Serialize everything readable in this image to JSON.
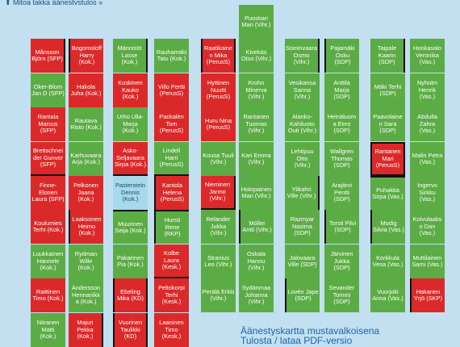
{
  "topbar_text": "⬆ Mitoa takka äänestystulos »",
  "legend": {
    "line1": "Äänestyskartta mustavalkoisena",
    "line2": "Tulosta / lataa PDF-versio"
  },
  "colors": {
    "green": "#5cac45",
    "red": "#db2929",
    "blue": "#a6d9ea"
  },
  "seats": [
    {
      "text": "Puoskari\nMari (Vihr.)",
      "c": "g",
      "col": 5,
      "row": 0
    },
    {
      "text": "Månsson\nBjörn (SFP)",
      "c": "r",
      "col": 0,
      "row": 1
    },
    {
      "text": "Bogomoloff\nHarry\n(Kok.)",
      "c": "r",
      "col": 1,
      "row": 1
    },
    {
      "text": "Männistö\nLasse\n(Kok.)",
      "c": "g",
      "col": 2,
      "row": 1
    },
    {
      "text": "Rauhamäki\nTatu (Kok.)",
      "c": "g",
      "col": 3,
      "row": 1
    },
    {
      "text": "Raatikaine\nn Mika\n(PerusS)",
      "c": "r",
      "col": 4,
      "row": 1
    },
    {
      "text": "Kivekäs\nOtso (Vihr.)",
      "c": "g",
      "col": 5,
      "row": 1
    },
    {
      "text": "Soininvaara\nOsmo\n(Vihr.)",
      "c": "g",
      "col": 6,
      "row": 1
    },
    {
      "text": "Pajamäki\nOsku (SDP)",
      "c": "g",
      "col": 7,
      "row": 1
    },
    {
      "text": "Taipale\nKaarin\n(SDP)",
      "c": "g",
      "col": 8,
      "row": 1
    },
    {
      "text": "Honkasalo\nVeronika\n(Vas.)",
      "c": "g",
      "col": 9,
      "row": 1
    },
    {
      "text": "Oker-Blom\nJan D (SFP)",
      "c": "g",
      "col": 0,
      "row": 2
    },
    {
      "text": "Hakola\nJuha (Kok.)",
      "c": "r",
      "col": 1,
      "row": 2
    },
    {
      "text": "Koskinen\nKauko\n(Kok.)",
      "c": "r",
      "col": 2,
      "row": 2
    },
    {
      "text": "Villo Pertti\n(PerusS)",
      "c": "r",
      "col": 3,
      "row": 2
    },
    {
      "text": "Hyttinen\nNuutti\n(PerusS)",
      "c": "r",
      "col": 4,
      "row": 2
    },
    {
      "text": "Krohn\nMinerva\n(Vihr.)",
      "c": "g",
      "col": 5,
      "row": 2
    },
    {
      "text": "Vesikansa\nSanna\n(Vihr.)",
      "c": "g",
      "col": 6,
      "row": 2
    },
    {
      "text": "Anttila\nMarja\n(SDP)",
      "c": "g",
      "col": 7,
      "row": 2
    },
    {
      "text": "Mäki Terhi\n(SDP)",
      "c": "g",
      "col": 8,
      "row": 2
    },
    {
      "text": "Nyholm\nHenrik\n(Vas.)",
      "c": "g",
      "col": 9,
      "row": 2
    },
    {
      "text": "Rantala\nMarcus\n(SFP)",
      "c": "r",
      "col": 0,
      "row": 3
    },
    {
      "text": "Rautava\nRisto (Kok.)",
      "c": "g",
      "col": 1,
      "row": 3
    },
    {
      "text": "Urho Ulla-\nMarja\n(Kok.)",
      "c": "g",
      "col": 2,
      "row": 3
    },
    {
      "text": "Packalén\nTom\n(PerusS)",
      "c": "r",
      "col": 3,
      "row": 3
    },
    {
      "text": "Huru Nina\n(PerusS)",
      "c": "r",
      "col": 4,
      "row": 3
    },
    {
      "text": "Rantanen\nTuomas\n(Vihr.)",
      "c": "g",
      "col": 5,
      "row": 3
    },
    {
      "text": "Alanko-\nKahiluoto\nOuti (Vihr.)",
      "c": "g",
      "col": 6,
      "row": 3
    },
    {
      "text": "Heinäluom\na Eero\n(SDP)",
      "c": "g",
      "col": 7,
      "row": 3
    },
    {
      "text": "Paavolaine\nn Sara\n(SDP)",
      "c": "g",
      "col": 8,
      "row": 3
    },
    {
      "text": "Abdulla\nZahra\n(Vas.)",
      "c": "g",
      "col": 9,
      "row": 3
    },
    {
      "text": "Brettschnei\nder Gunvor\n(SFP)",
      "c": "r",
      "col": 0,
      "row": 4
    },
    {
      "text": "Karhuvaara\nArja (Kok.)",
      "c": "g",
      "col": 1,
      "row": 4
    },
    {
      "text": "Asko-\nSeljavaara\nSirpa (Kok.)",
      "c": "r",
      "col": 2,
      "row": 4
    },
    {
      "text": "Lindell\nHarri\n(PerusS)",
      "c": "g",
      "col": 3,
      "row": 4
    },
    {
      "text": "Kousa Tuuli\n(Vihr.)",
      "c": "g",
      "col": 4,
      "row": 4
    },
    {
      "text": "Kari Emma\n(Vihr.)",
      "c": "g",
      "col": 5,
      "row": 4
    },
    {
      "text": "Lehtipuu\nOtto\n(Vihr.)",
      "c": "g",
      "col": 6,
      "row": 4
    },
    {
      "text": "Wallgren\nThomas\n(SDP)",
      "c": "g",
      "col": 7,
      "row": 4
    },
    {
      "text": "Rantanen\nMari\n(PerusS)",
      "c": "r",
      "col": 8,
      "row": 4
    },
    {
      "text": "Malin Petra\n(Vas.)",
      "c": "g",
      "col": 9,
      "row": 4
    },
    {
      "text": "Finne-\nElonen\nLaura (SFP)",
      "c": "r",
      "col": 0,
      "row": 5
    },
    {
      "text": "Pelkonen\nJaana\n(Kok.)",
      "c": "r",
      "col": 1,
      "row": 5
    },
    {
      "text": "Pasterstein\nDennis\n(Kok.)",
      "c": "b",
      "col": 2,
      "row": 5
    },
    {
      "text": "Kantola\nHelena\n(PerusS)",
      "c": "r",
      "col": 3,
      "row": 5
    },
    {
      "text": "Nieminen\nJarmo\n(Vihr.)",
      "c": "r",
      "col": 4,
      "row": 5
    },
    {
      "text": "Holopainen\nMari (Vihr.)",
      "c": "g",
      "col": 5,
      "row": 5
    },
    {
      "text": "Ylikahri\nVille (Vihr.)",
      "c": "g",
      "col": 6,
      "row": 5
    },
    {
      "text": "Arajärvi\nPentti\n(SDP)",
      "c": "g",
      "col": 7,
      "row": 5
    },
    {
      "text": "Puhakka\nSirpa (Vas.)",
      "c": "g",
      "col": 8,
      "row": 5
    },
    {
      "text": "Ingervo\nSirkku\n(Vas.)",
      "c": "g",
      "col": 9,
      "row": 5
    },
    {
      "text": "Koulumies\nTerhi (Kok.)",
      "c": "r",
      "col": 0,
      "row": 6
    },
    {
      "text": "Laaksonen\nHeimo\n(Kok.)",
      "c": "r",
      "col": 1,
      "row": 6
    },
    {
      "text": "Muurinen\nSeija (Kok.)",
      "c": "g",
      "col": 2,
      "row": 6
    },
    {
      "text": "Hursti Rene\n(RKP)",
      "c": "g",
      "col": 3,
      "row": 6
    },
    {
      "text": "Relander\nJukka\n(Vihr.)",
      "c": "g",
      "col": 4,
      "row": 6
    },
    {
      "text": "Möller\nAntti (Vihr.)",
      "c": "g",
      "col": 5,
      "row": 6
    },
    {
      "text": "Razmyar\nNasima\n(SDP)",
      "c": "g",
      "col": 6,
      "row": 6
    },
    {
      "text": "Torsti Pilvi\n(SDP)",
      "c": "g",
      "col": 7,
      "row": 6
    },
    {
      "text": "Modig\nSilvia (Vas.)",
      "c": "g",
      "col": 8,
      "row": 6
    },
    {
      "text": "Koivulaaks\no Dan\n(Vas.)",
      "c": "g",
      "col": 9,
      "row": 6
    },
    {
      "text": "Luukkainen\nHannele\n(Kok.)",
      "c": "g",
      "col": 0,
      "row": 7
    },
    {
      "text": "Rydman\nWille\n(Kok.)",
      "c": "g",
      "col": 1,
      "row": 7
    },
    {
      "text": "Pakarinen\nPia (Kok.)",
      "c": "g",
      "col": 2,
      "row": 7
    },
    {
      "text": "Kolbe\nLaura\n(Kesk.)",
      "c": "r",
      "col": 3,
      "row": 7
    },
    {
      "text": "Stranius\nLeo (Vihr.)",
      "c": "g",
      "col": 4,
      "row": 7
    },
    {
      "text": "Oskala\nHannu\n(Vihr.)",
      "c": "g",
      "col": 5,
      "row": 7
    },
    {
      "text": "Jalovaara\nVille (SDP)",
      "c": "g",
      "col": 6,
      "row": 7
    },
    {
      "text": "Järvinen\nJukka (SDP)",
      "c": "g",
      "col": 7,
      "row": 7
    },
    {
      "text": "Korkkula\nVesa (Vas.)",
      "c": "g",
      "col": 8,
      "row": 7
    },
    {
      "text": "Muttilainen\nSami (Vas.)",
      "c": "g",
      "col": 9,
      "row": 7
    },
    {
      "text": "Raittinen\nTimo (Kok.)",
      "c": "r",
      "col": 0,
      "row": 8
    },
    {
      "text": "Andersson\nHennariikk\na (Kok.)",
      "c": "g",
      "col": 1,
      "row": 8
    },
    {
      "text": "Ebeling\nMika (KD)",
      "c": "r",
      "col": 2,
      "row": 8
    },
    {
      "text": "Peltokorpi\nTerhi\n(Kesk.)",
      "c": "r",
      "col": 3,
      "row": 8
    },
    {
      "text": "Perälä Erkki\n(Vihr.)",
      "c": "g",
      "col": 4,
      "row": 8
    },
    {
      "text": "Sydänmaa\nJohanna\n(Vihr.)",
      "c": "g",
      "col": 5,
      "row": 8
    },
    {
      "text": "Lovén Jape\n(SDP)",
      "c": "g",
      "col": 6,
      "row": 8
    },
    {
      "text": "Sevander\nTommi\n(SDP)",
      "c": "g",
      "col": 7,
      "row": 8
    },
    {
      "text": "Vuorjoki\nAnna (Vas.)",
      "c": "g",
      "col": 8,
      "row": 8
    },
    {
      "text": "Hakanen\nYrjö (SKP)",
      "c": "r",
      "col": 9,
      "row": 8
    },
    {
      "text": "Niiranen\nMatti\n(Kok.)",
      "c": "g",
      "col": 0,
      "row": 9
    },
    {
      "text": "Majuri\nPekka\n(Kok.)",
      "c": "r",
      "col": 1,
      "row": 9
    },
    {
      "text": "Vuorinen\nTaulikki\n(KD)",
      "c": "r",
      "col": 2,
      "row": 9
    },
    {
      "text": "Laaninen\nTimo\n(Kesk.)",
      "c": "r",
      "col": 3,
      "row": 9
    }
  ]
}
